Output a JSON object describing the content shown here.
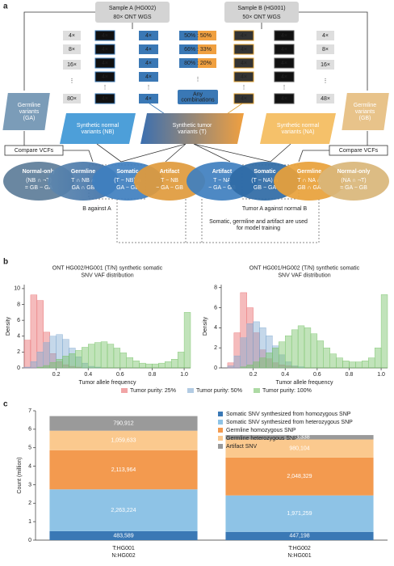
{
  "panel_labels": [
    "a",
    "b",
    "c"
  ],
  "panel_a": {
    "sample_a": {
      "title": "Sample A (HG002)",
      "detail": "80× ONT WGS"
    },
    "sample_b": {
      "title": "Sample B (HG001)",
      "detail": "50× ONT WGS"
    },
    "left_depths": [
      "4×",
      "8×",
      "16×",
      "⋮",
      "80×"
    ],
    "left_subsamples": [
      "4×",
      "4×",
      "4×",
      "4×",
      "⋮",
      "4×"
    ],
    "left_selected": [
      "4×",
      "4×",
      "4×",
      "4×",
      "⋮",
      "4×"
    ],
    "mixtures": [
      "50% : 50%",
      "66% : 33%",
      "80% : 20%",
      "⋮",
      "Any combinations"
    ],
    "right_selected": [
      "4×",
      "4×",
      "4×",
      "4×",
      "⋮",
      "4×"
    ],
    "right_subsamples": [
      "4×",
      "4×",
      "4×",
      "4×",
      "⋮",
      "4×"
    ],
    "right_depths": [
      "4×",
      "8×",
      "16×",
      "⋮",
      "48×"
    ],
    "germline_a": "Germline variants (GA)",
    "germline_b": "Germline variants (GB)",
    "normal_b": "Synthetic normal variants (NB)",
    "tumor": "Synthetic tumor variants (T)",
    "normal_a": "Synthetic normal variants (NA)",
    "compare_left": "Compare VCFs",
    "compare_right": "Compare VCFs",
    "left_sets": [
      {
        "title": "Normal-only",
        "lines": [
          "(NB ∩ ¬T)",
          "= GB − GA"
        ]
      },
      {
        "title": "Germline",
        "lines": [
          "T ∩ NB ∩",
          "GA ∩ GB"
        ]
      },
      {
        "title": "Somatic",
        "lines": [
          "(T − NB) ∩",
          "GA − GB"
        ]
      },
      {
        "title": "Artifact",
        "lines": [
          "T − NB",
          "− GA − GB"
        ]
      }
    ],
    "right_sets": [
      {
        "title": "Artifact",
        "lines": [
          "T − NA",
          "− GA − GB"
        ]
      },
      {
        "title": "Somatic",
        "lines": [
          "(T − NA) ∩",
          "GB − GA"
        ]
      },
      {
        "title": "Germline",
        "lines": [
          "T ∩ NA ∩",
          "GB ∩ GA"
        ]
      },
      {
        "title": "Normal-only",
        "lines": [
          "(NA ∩ ¬T)",
          "= GA − GB"
        ]
      }
    ],
    "left_caption": "B against A",
    "right_caption": "Tumor A against normal B",
    "training_note": "Somatic, germline and artifact are used for model training"
  },
  "chart_data": [
    {
      "type": "histogram",
      "title": "ONT HG002/HG001 (T/N) synthetic somatic SNV VAF distribution",
      "x_label": "Tumor allele frequency",
      "y_label": "Density",
      "bins": [
        0,
        0.04,
        0.08,
        0.12,
        0.16,
        0.2,
        0.24,
        0.28,
        0.32,
        0.36,
        0.4,
        0.44,
        0.48,
        0.52,
        0.56,
        0.6,
        0.64,
        0.68,
        0.72,
        0.76,
        0.8,
        0.84,
        0.88,
        0.92,
        0.96,
        1,
        1.04
      ],
      "xlim": [
        0,
        1.04
      ],
      "xticks": [
        0.2,
        0.4,
        0.6,
        0.8,
        {
          "value": 1,
          "label": "1.0"
        }
      ],
      "ylim": [
        0,
        10.5
      ],
      "yticks": [
        0,
        2,
        4,
        6,
        8,
        10
      ],
      "series": [
        {
          "name": "Tumor purity: 25%",
          "color": "#e8696b",
          "values": [
            3.5,
            9.2,
            8.5,
            4.5,
            1.8,
            0.8,
            0.4,
            0.2,
            0.1,
            0,
            0,
            0,
            0,
            0,
            0,
            0,
            0,
            0,
            0,
            0,
            0,
            0,
            0,
            0,
            0,
            0
          ]
        },
        {
          "name": "Tumor purity: 50%",
          "color": "#7fa8d0",
          "values": [
            0.1,
            0.8,
            2.0,
            3.2,
            4.0,
            4.2,
            3.6,
            2.5,
            1.4,
            0.6,
            0.2,
            0.1,
            0,
            0,
            0,
            0,
            0,
            0,
            0,
            0,
            0,
            0,
            0,
            0,
            0,
            0
          ]
        },
        {
          "name": "Tumor purity: 100%",
          "color": "#76c267",
          "values": [
            0,
            0,
            0.1,
            0.3,
            0.7,
            1.1,
            1.5,
            1.8,
            2.2,
            2.6,
            3.0,
            3.2,
            3.3,
            3.0,
            2.5,
            1.9,
            1.3,
            0.9,
            0.6,
            0.5,
            0.5,
            0.6,
            0.8,
            1.1,
            2.0,
            7.0
          ]
        }
      ]
    },
    {
      "type": "histogram",
      "title": "ONT HG001/HG002 (T/N) synthetic somatic SNV VAF distribution",
      "x_label": "Tumor allele frequency",
      "y_label": "Density",
      "bins": [
        0,
        0.04,
        0.08,
        0.12,
        0.16,
        0.2,
        0.24,
        0.28,
        0.32,
        0.36,
        0.4,
        0.44,
        0.48,
        0.52,
        0.56,
        0.6,
        0.64,
        0.68,
        0.72,
        0.76,
        0.8,
        0.84,
        0.88,
        0.92,
        0.96,
        1,
        1.04
      ],
      "xlim": [
        0,
        1.04
      ],
      "xticks": [
        0.2,
        0.4,
        0.6,
        0.8,
        {
          "value": 1,
          "label": "1.0"
        }
      ],
      "ylim": [
        0,
        8.3
      ],
      "yticks": [
        0,
        2,
        4,
        6,
        8
      ],
      "series": [
        {
          "color": "#e8696b",
          "values": [
            0,
            0.5,
            3.5,
            7.5,
            6.0,
            3.5,
            1.8,
            0.9,
            0.5,
            0.3,
            0.2,
            0.1,
            0,
            0,
            0,
            0,
            0,
            0,
            0,
            0,
            0,
            0,
            0,
            0,
            0,
            0
          ]
        },
        {
          "color": "#7fa8d0",
          "values": [
            0,
            0.2,
            1.2,
            3.0,
            4.4,
            4.6,
            4.0,
            3.2,
            2.2,
            1.3,
            0.6,
            0.2,
            0.1,
            0,
            0,
            0,
            0,
            0,
            0,
            0,
            0,
            0,
            0,
            0,
            0,
            0
          ]
        },
        {
          "color": "#76c267",
          "values": [
            0,
            0,
            0,
            0.1,
            0.3,
            0.6,
            1.0,
            1.5,
            2.0,
            2.6,
            3.2,
            3.8,
            4.2,
            4.0,
            3.4,
            2.7,
            2.0,
            1.4,
            1.0,
            0.7,
            0.6,
            0.6,
            0.7,
            1.0,
            2.0,
            7.3
          ]
        }
      ]
    },
    {
      "type": "bar",
      "stacked": true,
      "y_label": "Count (million)",
      "categories": [
        "T:HG001\nN:HG002",
        "T:HG002\nN:HG001"
      ],
      "ylim": [
        0,
        7
      ],
      "yticks": [
        0,
        1,
        2,
        3,
        4,
        5,
        6,
        7
      ],
      "series": [
        {
          "name": "Somatic SNV synthesized from homozygous SNP",
          "color": "#3a78b5",
          "values": [
            0.483589,
            0.447198
          ],
          "value_labels": [
            "483,589",
            "447,198"
          ]
        },
        {
          "name": "Somatic SNV synthesized from heterozygous SNP",
          "color": "#8ec3e6",
          "values": [
            2.263224,
            1.971259
          ],
          "value_labels": [
            "2,263,224",
            "1,971,259"
          ]
        },
        {
          "name": "Germline homozygous SNP",
          "color": "#f39a4f",
          "values": [
            2.113964,
            2.048329
          ],
          "value_labels": [
            "2,113,964",
            "2,048,329"
          ]
        },
        {
          "name": "Germline heterozygous SNP",
          "color": "#fbc98e",
          "values": [
            1.059633,
            0.980104
          ],
          "value_labels": [
            "1,059,633",
            "980,104"
          ]
        },
        {
          "name": "Artifact SNV",
          "color": "#9a9a9a",
          "values": [
            0.790912,
            0.238338
          ],
          "value_labels": [
            "790,912",
            "238,338"
          ]
        }
      ]
    }
  ]
}
